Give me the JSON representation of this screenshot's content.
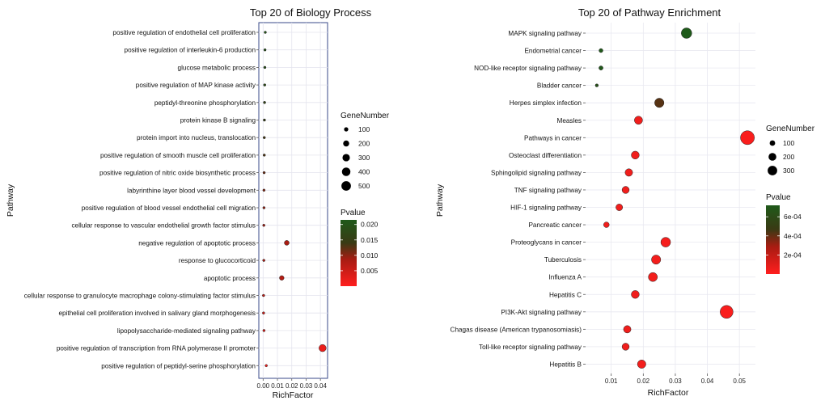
{
  "chart_data": [
    {
      "type": "scatter",
      "title": "Top 20 of Biology Process",
      "xlabel": "RichFactor",
      "ylabel": "Pathway",
      "xlim": [
        -0.003,
        0.045
      ],
      "xticks": [
        0.0,
        0.01,
        0.02,
        0.03,
        0.04
      ],
      "xtick_labels": [
        "0.00",
        "0.01",
        "0.02",
        "0.03",
        "0.04"
      ],
      "grid": true,
      "size_legend": {
        "title": "GeneNumber",
        "values": [
          100,
          200,
          300,
          400,
          500
        ]
      },
      "color_legend": {
        "title": "Pvalue",
        "ticks": [
          0.005,
          0.01,
          0.015,
          0.02
        ],
        "tick_labels": [
          "0.005",
          "0.010",
          "0.015",
          "0.020"
        ],
        "range": [
          0.0,
          0.0215
        ]
      },
      "points": [
        {
          "label": "positive regulation of endothelial cell proliferation",
          "x": 0.0015,
          "genes": 8,
          "pvalue": 0.0205
        },
        {
          "label": "positive regulation of interleukin-6 production",
          "x": 0.0013,
          "genes": 7,
          "pvalue": 0.0195
        },
        {
          "label": "glucose metabolic process",
          "x": 0.0012,
          "genes": 7,
          "pvalue": 0.019
        },
        {
          "label": "positive regulation of MAP kinase activity",
          "x": 0.0011,
          "genes": 7,
          "pvalue": 0.018
        },
        {
          "label": "peptidyl-threonine phosphorylation",
          "x": 0.001,
          "genes": 6,
          "pvalue": 0.016
        },
        {
          "label": "protein kinase B signaling",
          "x": 0.0009,
          "genes": 6,
          "pvalue": 0.015
        },
        {
          "label": "protein import into nucleus, translocation",
          "x": 0.0008,
          "genes": 6,
          "pvalue": 0.0135
        },
        {
          "label": "positive regulation of smooth muscle cell proliferation",
          "x": 0.0008,
          "genes": 6,
          "pvalue": 0.013
        },
        {
          "label": "positive regulation of nitric oxide biosynthetic process",
          "x": 0.0007,
          "genes": 5,
          "pvalue": 0.0115
        },
        {
          "label": "labyrinthine layer blood vessel development",
          "x": 0.0006,
          "genes": 5,
          "pvalue": 0.0105
        },
        {
          "label": "positive regulation of blood vessel endothelial cell migration",
          "x": 0.0006,
          "genes": 5,
          "pvalue": 0.0095
        },
        {
          "label": "cellular response to vascular endothelial growth factor stimulus",
          "x": 0.0005,
          "genes": 4,
          "pvalue": 0.009
        },
        {
          "label": "negative regulation of apoptotic process",
          "x": 0.0165,
          "genes": 50,
          "pvalue": 0.0085
        },
        {
          "label": "response to glucocorticoid",
          "x": 0.0005,
          "genes": 4,
          "pvalue": 0.008
        },
        {
          "label": "apoptotic process",
          "x": 0.013,
          "genes": 45,
          "pvalue": 0.0075
        },
        {
          "label": "cellular response to granulocyte macrophage colony-stimulating factor stimulus",
          "x": 0.0003,
          "genes": 3,
          "pvalue": 0.006
        },
        {
          "label": "epithelial cell proliferation involved in salivary gland morphogenesis",
          "x": 0.0003,
          "genes": 3,
          "pvalue": 0.005
        },
        {
          "label": "lipopolysaccharide-mediated signaling pathway",
          "x": 0.0006,
          "genes": 6,
          "pvalue": 0.004
        },
        {
          "label": "positive regulation of transcription from RNA polymerase II promoter",
          "x": 0.0415,
          "genes": 110,
          "pvalue": 0.002
        },
        {
          "label": "positive regulation of peptidyl-serine phosphorylation",
          "x": 0.0022,
          "genes": 12,
          "pvalue": 0.0015
        }
      ]
    },
    {
      "type": "scatter",
      "title": "Top 20 of Pathway Enrichment",
      "xlabel": "RichFactor",
      "ylabel": "Pathway",
      "xlim": [
        0.002,
        0.055
      ],
      "xticks": [
        0.01,
        0.02,
        0.03,
        0.04,
        0.05
      ],
      "xtick_labels": [
        "0.01",
        "0.02",
        "0.03",
        "0.04",
        "0.05"
      ],
      "grid": true,
      "size_legend": {
        "title": "GeneNumber",
        "values": [
          100,
          200,
          300
        ]
      },
      "color_legend": {
        "title": "Pvalue",
        "ticks": [
          0.0002,
          0.0004,
          0.0006
        ],
        "tick_labels": [
          "2e-04",
          "4e-04",
          "6e-04"
        ],
        "range": [
          0.0,
          0.00072
        ]
      },
      "points": [
        {
          "label": "MAPK signaling pathway",
          "x": 0.0335,
          "genes": 140,
          "pvalue": 0.00072
        },
        {
          "label": "Endometrial cancer",
          "x": 0.0068,
          "genes": 20,
          "pvalue": 0.00071
        },
        {
          "label": "NOD-like receptor signaling pathway",
          "x": 0.0068,
          "genes": 22,
          "pvalue": 0.0007
        },
        {
          "label": "Bladder cancer",
          "x": 0.0055,
          "genes": 12,
          "pvalue": 0.00065
        },
        {
          "label": "Herpes simplex infection",
          "x": 0.025,
          "genes": 110,
          "pvalue": 0.00042
        },
        {
          "label": "Measles",
          "x": 0.0185,
          "genes": 85,
          "pvalue": 5e-05
        },
        {
          "label": "Pathways in cancer",
          "x": 0.0525,
          "genes": 245,
          "pvalue": 2e-05
        },
        {
          "label": "Osteoclast differentiation",
          "x": 0.0175,
          "genes": 80,
          "pvalue": 5e-05
        },
        {
          "label": "Sphingolipid signaling pathway",
          "x": 0.0155,
          "genes": 72,
          "pvalue": 5e-05
        },
        {
          "label": "TNF signaling pathway",
          "x": 0.0145,
          "genes": 65,
          "pvalue": 5e-05
        },
        {
          "label": "HIF-1 signaling pathway",
          "x": 0.0125,
          "genes": 58,
          "pvalue": 5e-05
        },
        {
          "label": "Pancreatic cancer",
          "x": 0.0085,
          "genes": 40,
          "pvalue": 5e-05
        },
        {
          "label": "Proteoglycans in cancer",
          "x": 0.027,
          "genes": 120,
          "pvalue": 3e-05
        },
        {
          "label": "Tuberculosis",
          "x": 0.024,
          "genes": 108,
          "pvalue": 4e-05
        },
        {
          "label": "Influenza A",
          "x": 0.023,
          "genes": 103,
          "pvalue": 4e-05
        },
        {
          "label": "Hepatitis C",
          "x": 0.0175,
          "genes": 80,
          "pvalue": 5e-05
        },
        {
          "label": "PI3K-Akt signaling pathway",
          "x": 0.046,
          "genes": 215,
          "pvalue": 2e-05
        },
        {
          "label": "Chagas disease (American trypanosomiasis)",
          "x": 0.015,
          "genes": 70,
          "pvalue": 5e-05
        },
        {
          "label": "Toll-like receptor signaling pathway",
          "x": 0.0145,
          "genes": 65,
          "pvalue": 5e-05
        },
        {
          "label": "Hepatitis B",
          "x": 0.0195,
          "genes": 90,
          "pvalue": 4e-05
        }
      ]
    }
  ]
}
